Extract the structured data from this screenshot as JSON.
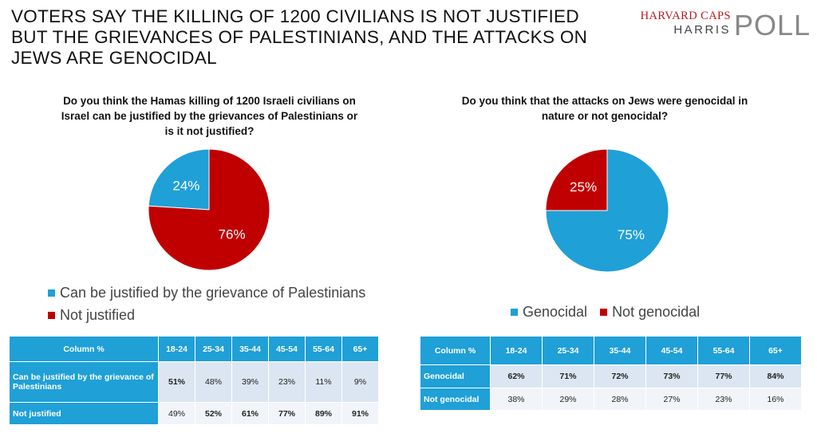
{
  "headline": {
    "line1": "VOTERS SAY THE KILLING OF 1200 CIVILIANS IS NOT JUSTIFIED",
    "line2": "BUT THE GRIEVANCES OF PALESTINIANS, AND THE ATTACKS ON",
    "line3": "JEWS ARE GENOCIDAL"
  },
  "logo": {
    "line1": "HARVARD CAPS",
    "line2": "HARRIS",
    "word": "POLL"
  },
  "colors": {
    "blue": "#1fa0d7",
    "red": "#c00000"
  },
  "left": {
    "question": {
      "line1": "Do you think the Hamas killing of 1200 Israeli civilians on",
      "line2": "Israel can be justified by the grievances of Palestinians or",
      "line3": "is it not justified?"
    },
    "legend": [
      "Can be justified by the grievance of Palestinians",
      "Not justified"
    ],
    "table": {
      "corner": "Column %",
      "headers": [
        "18-24",
        "25-34",
        "35-44",
        "45-54",
        "55-64",
        "65+"
      ],
      "rows": [
        {
          "label": "Can be justified by the grievance of Palestinians",
          "values": [
            "51%",
            "48%",
            "39%",
            "23%",
            "11%",
            "9%"
          ]
        },
        {
          "label": "Not justified",
          "values": [
            "49%",
            "52%",
            "61%",
            "77%",
            "89%",
            "91%"
          ]
        }
      ]
    }
  },
  "right": {
    "question": {
      "line1": "Do you think that the attacks on Jews were genocidal in",
      "line2": "nature or not genocidal?"
    },
    "legend": [
      "Genocidal",
      "Not genocidal"
    ],
    "table": {
      "corner": "Column %",
      "headers": [
        "18-24",
        "25-34",
        "35-44",
        "45-54",
        "55-64",
        "65+"
      ],
      "rows": [
        {
          "label": "Genocidal",
          "values": [
            "62%",
            "71%",
            "72%",
            "73%",
            "77%",
            "84%"
          ]
        },
        {
          "label": "Not genocidal",
          "values": [
            "38%",
            "29%",
            "28%",
            "27%",
            "23%",
            "16%"
          ]
        }
      ]
    }
  },
  "chart_data": [
    {
      "type": "pie",
      "title": "Do you think the Hamas killing of 1200 Israeli civilians on Israel can be justified by the grievances of Palestinians or is it not justified?",
      "categories": [
        "Can be justified by the grievance of Palestinians",
        "Not justified"
      ],
      "values": [
        24,
        76
      ],
      "labels": [
        "24%",
        "76%"
      ],
      "colors": [
        "#1fa0d7",
        "#c00000"
      ],
      "legend": "bottom"
    },
    {
      "type": "pie",
      "title": "Do you think that the attacks on Jews were genocidal in nature or not genocidal?",
      "categories": [
        "Genocidal",
        "Not genocidal"
      ],
      "values": [
        75,
        25
      ],
      "labels": [
        "75%",
        "25%"
      ],
      "colors": [
        "#1fa0d7",
        "#c00000"
      ],
      "legend": "bottom"
    },
    {
      "type": "table",
      "columns": [
        "18-24",
        "25-34",
        "35-44",
        "45-54",
        "55-64",
        "65+"
      ],
      "series": [
        {
          "name": "Can be justified by the grievance of Palestinians",
          "values": [
            51,
            48,
            39,
            23,
            11,
            9
          ]
        },
        {
          "name": "Not justified",
          "values": [
            49,
            52,
            61,
            77,
            89,
            91
          ]
        }
      ]
    },
    {
      "type": "table",
      "columns": [
        "18-24",
        "25-34",
        "35-44",
        "45-54",
        "55-64",
        "65+"
      ],
      "series": [
        {
          "name": "Genocidal",
          "values": [
            62,
            71,
            72,
            73,
            77,
            84
          ]
        },
        {
          "name": "Not genocidal",
          "values": [
            38,
            29,
            28,
            27,
            23,
            16
          ]
        }
      ]
    }
  ]
}
